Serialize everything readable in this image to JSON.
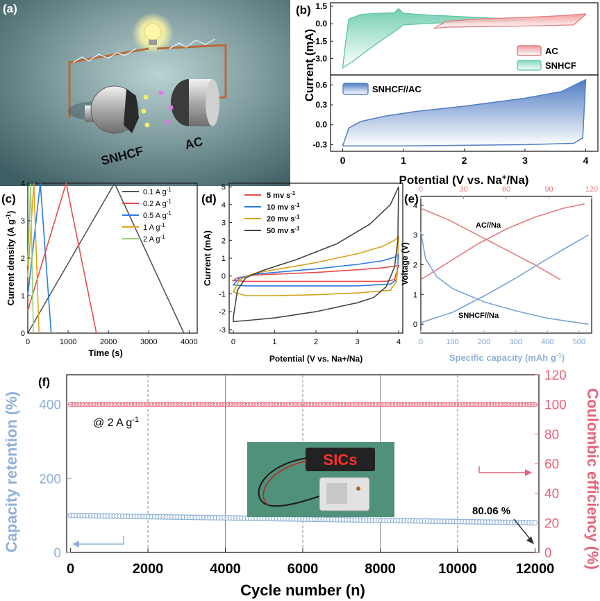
{
  "panel_letters": {
    "a": "(a)",
    "b": "(b)",
    "c": "(c)",
    "d": "(d)",
    "e": "(e)",
    "f": "(f)"
  },
  "colors": {
    "pink": "#e8617a",
    "blue_axis": "#8eb0d8",
    "teal": "#7fcfb3",
    "red_ac": "#e27c7c",
    "snhcf_fill": "#6f95cf",
    "c_01": "#555555",
    "c_02": "#e84a4a",
    "c_05": "#2a7ae8",
    "c_1": "#e0a419",
    "c_2": "#9bd07a",
    "d_5": "#e84a4a",
    "d_10": "#2a7ae8",
    "d_20": "#d4a017",
    "d_50": "#444444",
    "e_na": "#e27c7c",
    "e_full": "#7aa3d6",
    "photo_bg": "#4f9179",
    "led_text": "#ff3030"
  },
  "panel_a": {
    "label_left": "SNHCF",
    "label_right": "AC"
  },
  "chart_data": [
    {
      "id": "b-top",
      "type": "area",
      "xlabel_html": "Potential (V vs. Na+/Na)",
      "xlabel": "Potential (V vs. Na",
      "xlabel_sup": "+",
      "xlabel_tail": "/Na)",
      "ylabel": "Current (mA)",
      "ylim": [
        -4.4,
        1.8
      ],
      "xlim": [
        -0.2,
        4.2
      ],
      "yticks": [
        "1.5",
        "0.0",
        "-1.5",
        "-3.0"
      ],
      "legend": [
        "AC",
        "SNHCF"
      ],
      "series": [
        {
          "name": "AC",
          "upper": [
            [
              1.5,
              -0.4
            ],
            [
              1.7,
              0.2
            ],
            [
              2.2,
              0.4
            ],
            [
              3,
              0.55
            ],
            [
              3.6,
              0.7
            ],
            [
              4,
              0.85
            ]
          ],
          "lower": [
            [
              4,
              0.8
            ],
            [
              3.8,
              -0.1
            ],
            [
              3,
              -0.2
            ],
            [
              2.2,
              -0.25
            ],
            [
              1.7,
              -0.3
            ],
            [
              1.5,
              -0.4
            ]
          ]
        },
        {
          "name": "SNHCF",
          "upper": [
            [
              0,
              -3.8
            ],
            [
              0.05,
              -1.5
            ],
            [
              0.1,
              0.4
            ],
            [
              0.3,
              0.8
            ],
            [
              0.6,
              0.9
            ],
            [
              0.85,
              0.95
            ],
            [
              0.92,
              1.3
            ],
            [
              1.0,
              0.9
            ],
            [
              1.4,
              0.75
            ],
            [
              2,
              0.6
            ],
            [
              2.6,
              0.45
            ],
            [
              3,
              0.35
            ]
          ],
          "lower": [
            [
              3,
              0.35
            ],
            [
              2.6,
              0.2
            ],
            [
              2,
              0.15
            ],
            [
              1.5,
              0.05
            ],
            [
              1.0,
              -0.1
            ],
            [
              0.9,
              -0.5
            ],
            [
              0.7,
              -1.2
            ],
            [
              0.4,
              -2.3
            ],
            [
              0.15,
              -3.3
            ],
            [
              0,
              -3.8
            ]
          ]
        }
      ]
    },
    {
      "id": "b-bottom",
      "type": "area",
      "ylabel": "Current (mA)",
      "ylim": [
        -0.4,
        0.75
      ],
      "xlim": [
        -0.2,
        4.2
      ],
      "xticks": [
        "0",
        "1",
        "2",
        "3",
        "4"
      ],
      "yticks": [
        "0.6",
        "0.3",
        "0.0",
        "-0.3"
      ],
      "legend": [
        "SNHCF//AC"
      ],
      "series": [
        {
          "name": "SNHCF//AC",
          "upper": [
            [
              0,
              -0.32
            ],
            [
              0.1,
              -0.05
            ],
            [
              0.3,
              0.05
            ],
            [
              0.7,
              0.13
            ],
            [
              1.2,
              0.2
            ],
            [
              2,
              0.28
            ],
            [
              3,
              0.4
            ],
            [
              3.6,
              0.5
            ],
            [
              4,
              0.68
            ]
          ],
          "lower": [
            [
              4,
              0.68
            ],
            [
              3.95,
              -0.2
            ],
            [
              3.8,
              -0.28
            ],
            [
              3,
              -0.3
            ],
            [
              2,
              -0.31
            ],
            [
              1,
              -0.32
            ],
            [
              0,
              -0.32
            ]
          ]
        }
      ]
    },
    {
      "id": "c",
      "type": "line",
      "xlabel": "Time (s)",
      "ylabel": "Current density (A g",
      "ylabel_sup": "-1",
      "ylabel_tail": ")",
      "xlim": [
        0,
        4200
      ],
      "ylim": [
        0,
        4
      ],
      "xticks": [
        "0",
        "1000",
        "2000",
        "3000",
        "4000"
      ],
      "yticks": [
        "0",
        "1",
        "2",
        "3",
        "4"
      ],
      "series": [
        {
          "name": "0.1 A g",
          "sup": "-1",
          "x": [
            0,
            2150,
            3870
          ],
          "y": [
            0,
            4,
            0
          ]
        },
        {
          "name": "0.2 A g",
          "sup": "-1",
          "x": [
            0,
            950,
            1700
          ],
          "y": [
            0.6,
            4,
            0
          ]
        },
        {
          "name": "0.5 A g",
          "sup": "-1",
          "x": [
            0,
            310,
            580
          ],
          "y": [
            1.0,
            4,
            0
          ]
        },
        {
          "name": "1 A g",
          "sup": "-1",
          "x": [
            0,
            150,
            280
          ],
          "y": [
            1.5,
            4,
            0
          ]
        },
        {
          "name": "2 A g",
          "sup": "-1",
          "x": [
            0,
            70,
            140
          ],
          "y": [
            1.8,
            4,
            0
          ]
        }
      ]
    },
    {
      "id": "d",
      "type": "line",
      "xlabel": "Potential (V vs. Na+/Na)",
      "ylabel": "Current (mA)",
      "xlim": [
        -0.1,
        4.1
      ],
      "ylim": [
        -3.2,
        5.2
      ],
      "xticks": [
        "0",
        "1",
        "2",
        "3",
        "4"
      ],
      "yticks": [
        "5",
        "4",
        "3",
        "2",
        "1",
        "0",
        "-1",
        "-2",
        "-3"
      ],
      "series": [
        {
          "name": "5 mv s",
          "sup": "-1",
          "upper": [
            [
              0,
              -0.25
            ],
            [
              0.1,
              -0.1
            ],
            [
              0.5,
              0.05
            ],
            [
              1,
              0.1
            ],
            [
              2,
              0.2
            ],
            [
              3,
              0.35
            ],
            [
              3.6,
              0.45
            ],
            [
              3.9,
              0.55
            ],
            [
              4,
              0.6
            ]
          ],
          "lower": [
            [
              4,
              0.6
            ],
            [
              3.9,
              -0.2
            ],
            [
              3.7,
              -0.3
            ],
            [
              3,
              -0.3
            ],
            [
              2,
              -0.3
            ],
            [
              1,
              -0.3
            ],
            [
              0.3,
              -0.3
            ],
            [
              0,
              -0.25
            ]
          ]
        },
        {
          "name": "10 mv s",
          "sup": "-1",
          "upper": [
            [
              0,
              -0.5
            ],
            [
              0.15,
              -0.1
            ],
            [
              0.5,
              0.1
            ],
            [
              1,
              0.2
            ],
            [
              2,
              0.4
            ],
            [
              3,
              0.65
            ],
            [
              3.6,
              0.85
            ],
            [
              3.9,
              1.05
            ],
            [
              4,
              1.2
            ]
          ],
          "lower": [
            [
              4,
              1.2
            ],
            [
              3.95,
              -0.2
            ],
            [
              3.8,
              -0.45
            ],
            [
              3,
              -0.55
            ],
            [
              2,
              -0.55
            ],
            [
              1,
              -0.55
            ],
            [
              0.3,
              -0.55
            ],
            [
              0,
              -0.5
            ]
          ]
        },
        {
          "name": "20 mv s",
          "sup": "-1",
          "upper": [
            [
              0,
              -0.9
            ],
            [
              0.15,
              -0.2
            ],
            [
              0.5,
              0.15
            ],
            [
              1,
              0.35
            ],
            [
              2,
              0.75
            ],
            [
              3,
              1.25
            ],
            [
              3.6,
              1.65
            ],
            [
              3.9,
              2.0
            ],
            [
              4,
              2.2
            ]
          ],
          "lower": [
            [
              4,
              2.2
            ],
            [
              3.95,
              -0.3
            ],
            [
              3.8,
              -0.8
            ],
            [
              3,
              -0.95
            ],
            [
              2,
              -1.05
            ],
            [
              1,
              -1.1
            ],
            [
              0.3,
              -1.1
            ],
            [
              0,
              -0.9
            ]
          ]
        },
        {
          "name": "50 mv s",
          "sup": "-1",
          "upper": [
            [
              0,
              -2.3
            ],
            [
              0.1,
              -0.8
            ],
            [
              0.3,
              -0.1
            ],
            [
              0.7,
              0.3
            ],
            [
              1.5,
              0.9
            ],
            [
              2.5,
              1.8
            ],
            [
              3.3,
              2.9
            ],
            [
              3.8,
              4.0
            ],
            [
              4,
              5.0
            ]
          ],
          "lower": [
            [
              4,
              5.0
            ],
            [
              3.98,
              2.0
            ],
            [
              3.9,
              0.5
            ],
            [
              3.7,
              -0.6
            ],
            [
              3.4,
              -1.2
            ],
            [
              3,
              -1.5
            ],
            [
              2,
              -2.0
            ],
            [
              1,
              -2.35
            ],
            [
              0.3,
              -2.5
            ],
            [
              0,
              -2.55
            ]
          ]
        }
      ]
    },
    {
      "id": "e",
      "type": "line",
      "xlabel": "Specific capacity (mAh g",
      "xlabel_sup": "-1",
      "xlabel_tail": ")",
      "ylabel": "Voltage (V)",
      "xlim_bottom": [
        0,
        540
      ],
      "xlim_top": [
        0,
        120
      ],
      "ylim": [
        -0.3,
        4.3
      ],
      "xticks_bottom": [
        "0",
        "100",
        "200",
        "300",
        "400",
        "500"
      ],
      "xticks_top": [
        "0",
        "30",
        "60",
        "90",
        "120"
      ],
      "yticks": [
        "0",
        "1",
        "2",
        "3",
        "4"
      ],
      "annotations": [
        "AC//Na",
        "SNHCF//Na"
      ],
      "series": [
        {
          "name": "AC//Na charge",
          "axis": "top",
          "x": [
            0,
            20,
            40,
            60,
            80,
            100,
            115
          ],
          "y": [
            1.5,
            2.1,
            2.7,
            3.2,
            3.6,
            3.9,
            4.05
          ]
        },
        {
          "name": "AC//Na discharge",
          "axis": "top",
          "x": [
            0,
            20,
            40,
            60,
            80,
            98
          ],
          "y": [
            3.9,
            3.5,
            3.0,
            2.5,
            2.0,
            1.5
          ]
        },
        {
          "name": "SNHCF//Na charge",
          "axis": "bottom",
          "x": [
            0,
            100,
            200,
            300,
            400,
            480,
            530
          ],
          "y": [
            0.05,
            0.4,
            0.95,
            1.55,
            2.2,
            2.7,
            3.0
          ]
        },
        {
          "name": "SNHCF//Na discharge",
          "axis": "bottom",
          "x": [
            0,
            15,
            50,
            100,
            200,
            300,
            400,
            530
          ],
          "y": [
            3.1,
            2.2,
            1.6,
            1.2,
            0.75,
            0.45,
            0.2,
            0.0
          ]
        }
      ]
    },
    {
      "id": "f",
      "type": "scatter",
      "xlabel": "Cycle number (n)",
      "ylabel_left": "Capacity retention (%)",
      "ylabel_right": "Coulombic efficiency (%)",
      "xlim": [
        -100,
        12100
      ],
      "ylim_left": [
        0,
        480
      ],
      "ylim_right": [
        0,
        120
      ],
      "xticks": [
        "0",
        "2000",
        "4000",
        "6000",
        "8000",
        "10000",
        "12000"
      ],
      "yticks_left": [
        "0",
        "200",
        "400"
      ],
      "yticks_right": [
        "0",
        "20",
        "40",
        "60",
        "80",
        "100",
        "120"
      ],
      "annotation_rate": "@ 2 A g",
      "annotation_rate_sup": "-1",
      "annotation_final": "80.06 %",
      "photo_text": "SICs",
      "series": [
        {
          "name": "Capacity retention",
          "axis": "left",
          "x_start": 0,
          "x_end": 12000,
          "y_start": 100,
          "y_end": 80.06
        },
        {
          "name": "Coulombic efficiency",
          "axis": "right",
          "x_start": 0,
          "x_end": 12000,
          "y_value": 100
        }
      ]
    }
  ]
}
